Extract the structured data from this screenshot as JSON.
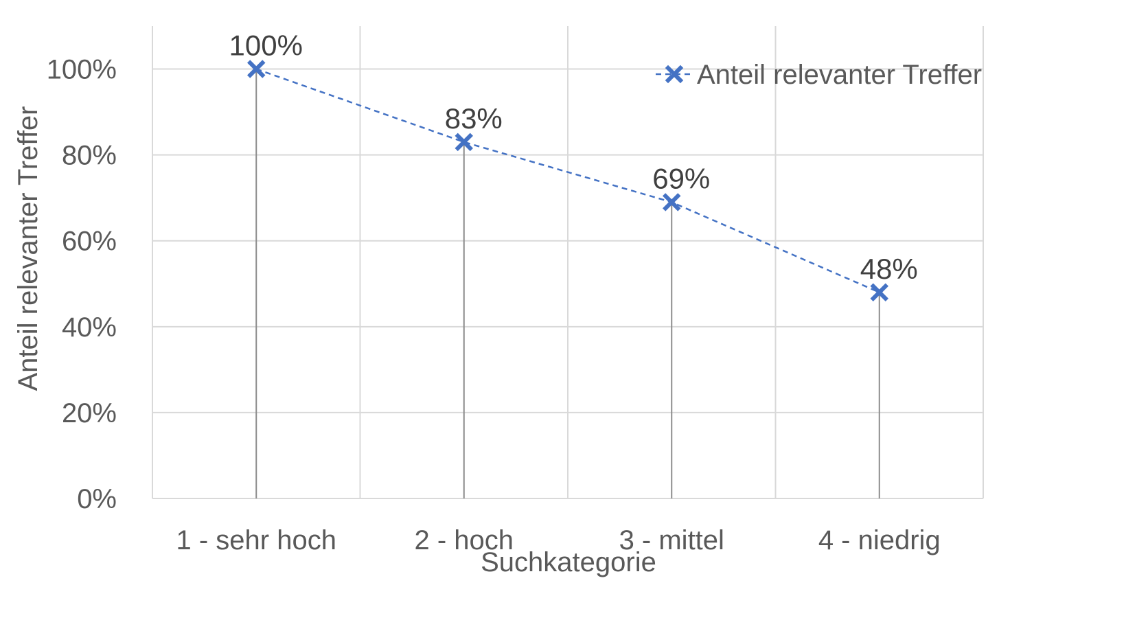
{
  "chart_data": {
    "type": "line",
    "categories": [
      "1 - sehr hoch",
      "2 - hoch",
      "3 - mittel",
      "4 - niedrig"
    ],
    "series": [
      {
        "name": "Anteil relevanter Treffer",
        "values": [
          100,
          83,
          69,
          48
        ],
        "data_labels": [
          "100%",
          "83%",
          "69%",
          "48%"
        ],
        "color": "#4472C4",
        "line_style": "dashed",
        "marker": "x"
      }
    ],
    "title": "",
    "xlabel": "Suchkategorie",
    "ylabel": "Anteil relevanter Treffer",
    "ylim": [
      0,
      110
    ],
    "yticks": [
      0,
      20,
      40,
      60,
      80,
      100
    ],
    "ytick_labels": [
      "0%",
      "20%",
      "40%",
      "60%",
      "80%",
      "100%"
    ],
    "grid": true,
    "drop_lines": true,
    "legend_position": "top-right"
  },
  "colors": {
    "series": "#4472C4",
    "grid": "#d9d9d9",
    "drop_line": "#8c8c8c",
    "tick_text": "#595959",
    "label_text": "#404040"
  }
}
